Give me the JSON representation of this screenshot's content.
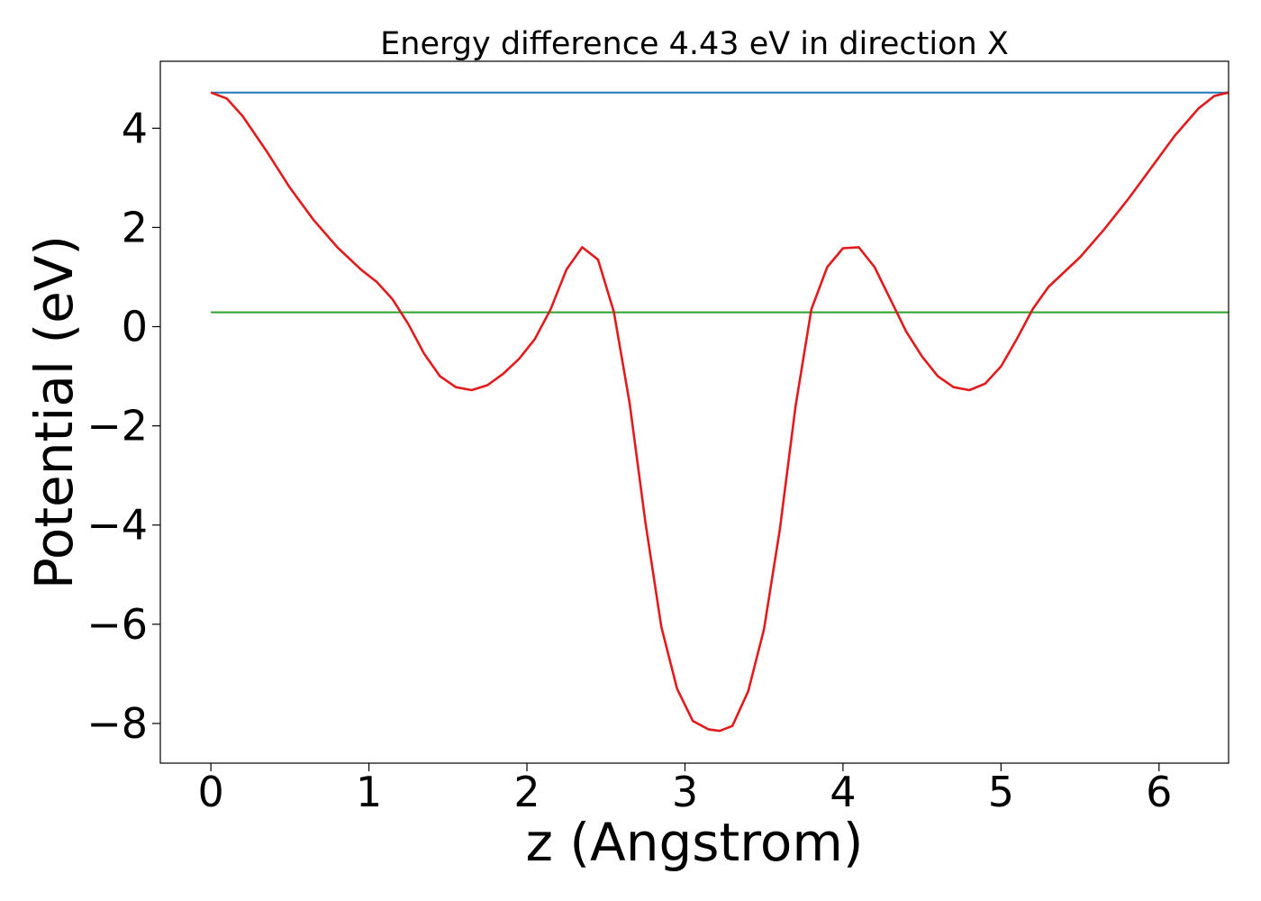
{
  "chart_data": {
    "type": "line",
    "title": "Energy difference 4.43 eV in direction X",
    "xlabel": "z (Angstrom)",
    "ylabel": "Potential (eV)",
    "xlim": [
      -0.32,
      6.44
    ],
    "ylim": [
      -8.8,
      5.35
    ],
    "x_ticks": [
      0,
      1,
      2,
      3,
      4,
      5,
      6
    ],
    "x_tick_labels": [
      "0",
      "1",
      "2",
      "3",
      "4",
      "5",
      "6"
    ],
    "y_ticks": [
      4,
      2,
      0,
      -2,
      -4,
      -6,
      -8
    ],
    "y_tick_labels": [
      "4",
      "2",
      "0",
      "−2",
      "−4",
      "−6",
      "−8"
    ],
    "grid": false,
    "series": [
      {
        "color": "#1f77b4",
        "x": [
          0,
          6.44
        ],
        "y": [
          4.72,
          4.72
        ]
      },
      {
        "color": "#2ca02c",
        "x": [
          0,
          6.44
        ],
        "y": [
          0.29,
          0.29
        ]
      },
      {
        "color": "#e31a1c",
        "x": [
          0,
          0.1,
          0.2,
          0.35,
          0.5,
          0.65,
          0.8,
          0.95,
          1.05,
          1.15,
          1.25,
          1.35,
          1.45,
          1.55,
          1.65,
          1.75,
          1.85,
          1.95,
          2.05,
          2.15,
          2.25,
          2.35,
          2.45,
          2.55,
          2.65,
          2.75,
          2.85,
          2.95,
          3.05,
          3.15,
          3.22,
          3.3,
          3.4,
          3.5,
          3.6,
          3.7,
          3.8,
          3.9,
          4.0,
          4.1,
          4.2,
          4.3,
          4.4,
          4.5,
          4.6,
          4.7,
          4.8,
          4.9,
          5.0,
          5.1,
          5.2,
          5.3,
          5.4,
          5.5,
          5.65,
          5.8,
          5.95,
          6.1,
          6.25,
          6.35,
          6.44
        ],
        "y": [
          4.72,
          4.6,
          4.25,
          3.55,
          2.8,
          2.15,
          1.6,
          1.15,
          0.9,
          0.55,
          0.05,
          -0.55,
          -1.0,
          -1.22,
          -1.28,
          -1.18,
          -0.95,
          -0.65,
          -0.25,
          0.35,
          1.15,
          1.6,
          1.35,
          0.3,
          -1.55,
          -3.95,
          -6.05,
          -7.3,
          -7.95,
          -8.12,
          -8.15,
          -8.05,
          -7.35,
          -6.1,
          -4.1,
          -1.6,
          0.35,
          1.2,
          1.58,
          1.6,
          1.2,
          0.55,
          -0.1,
          -0.6,
          -1.0,
          -1.22,
          -1.28,
          -1.15,
          -0.8,
          -0.25,
          0.35,
          0.8,
          1.1,
          1.4,
          1.95,
          2.55,
          3.2,
          3.85,
          4.4,
          4.65,
          4.72
        ]
      }
    ]
  }
}
